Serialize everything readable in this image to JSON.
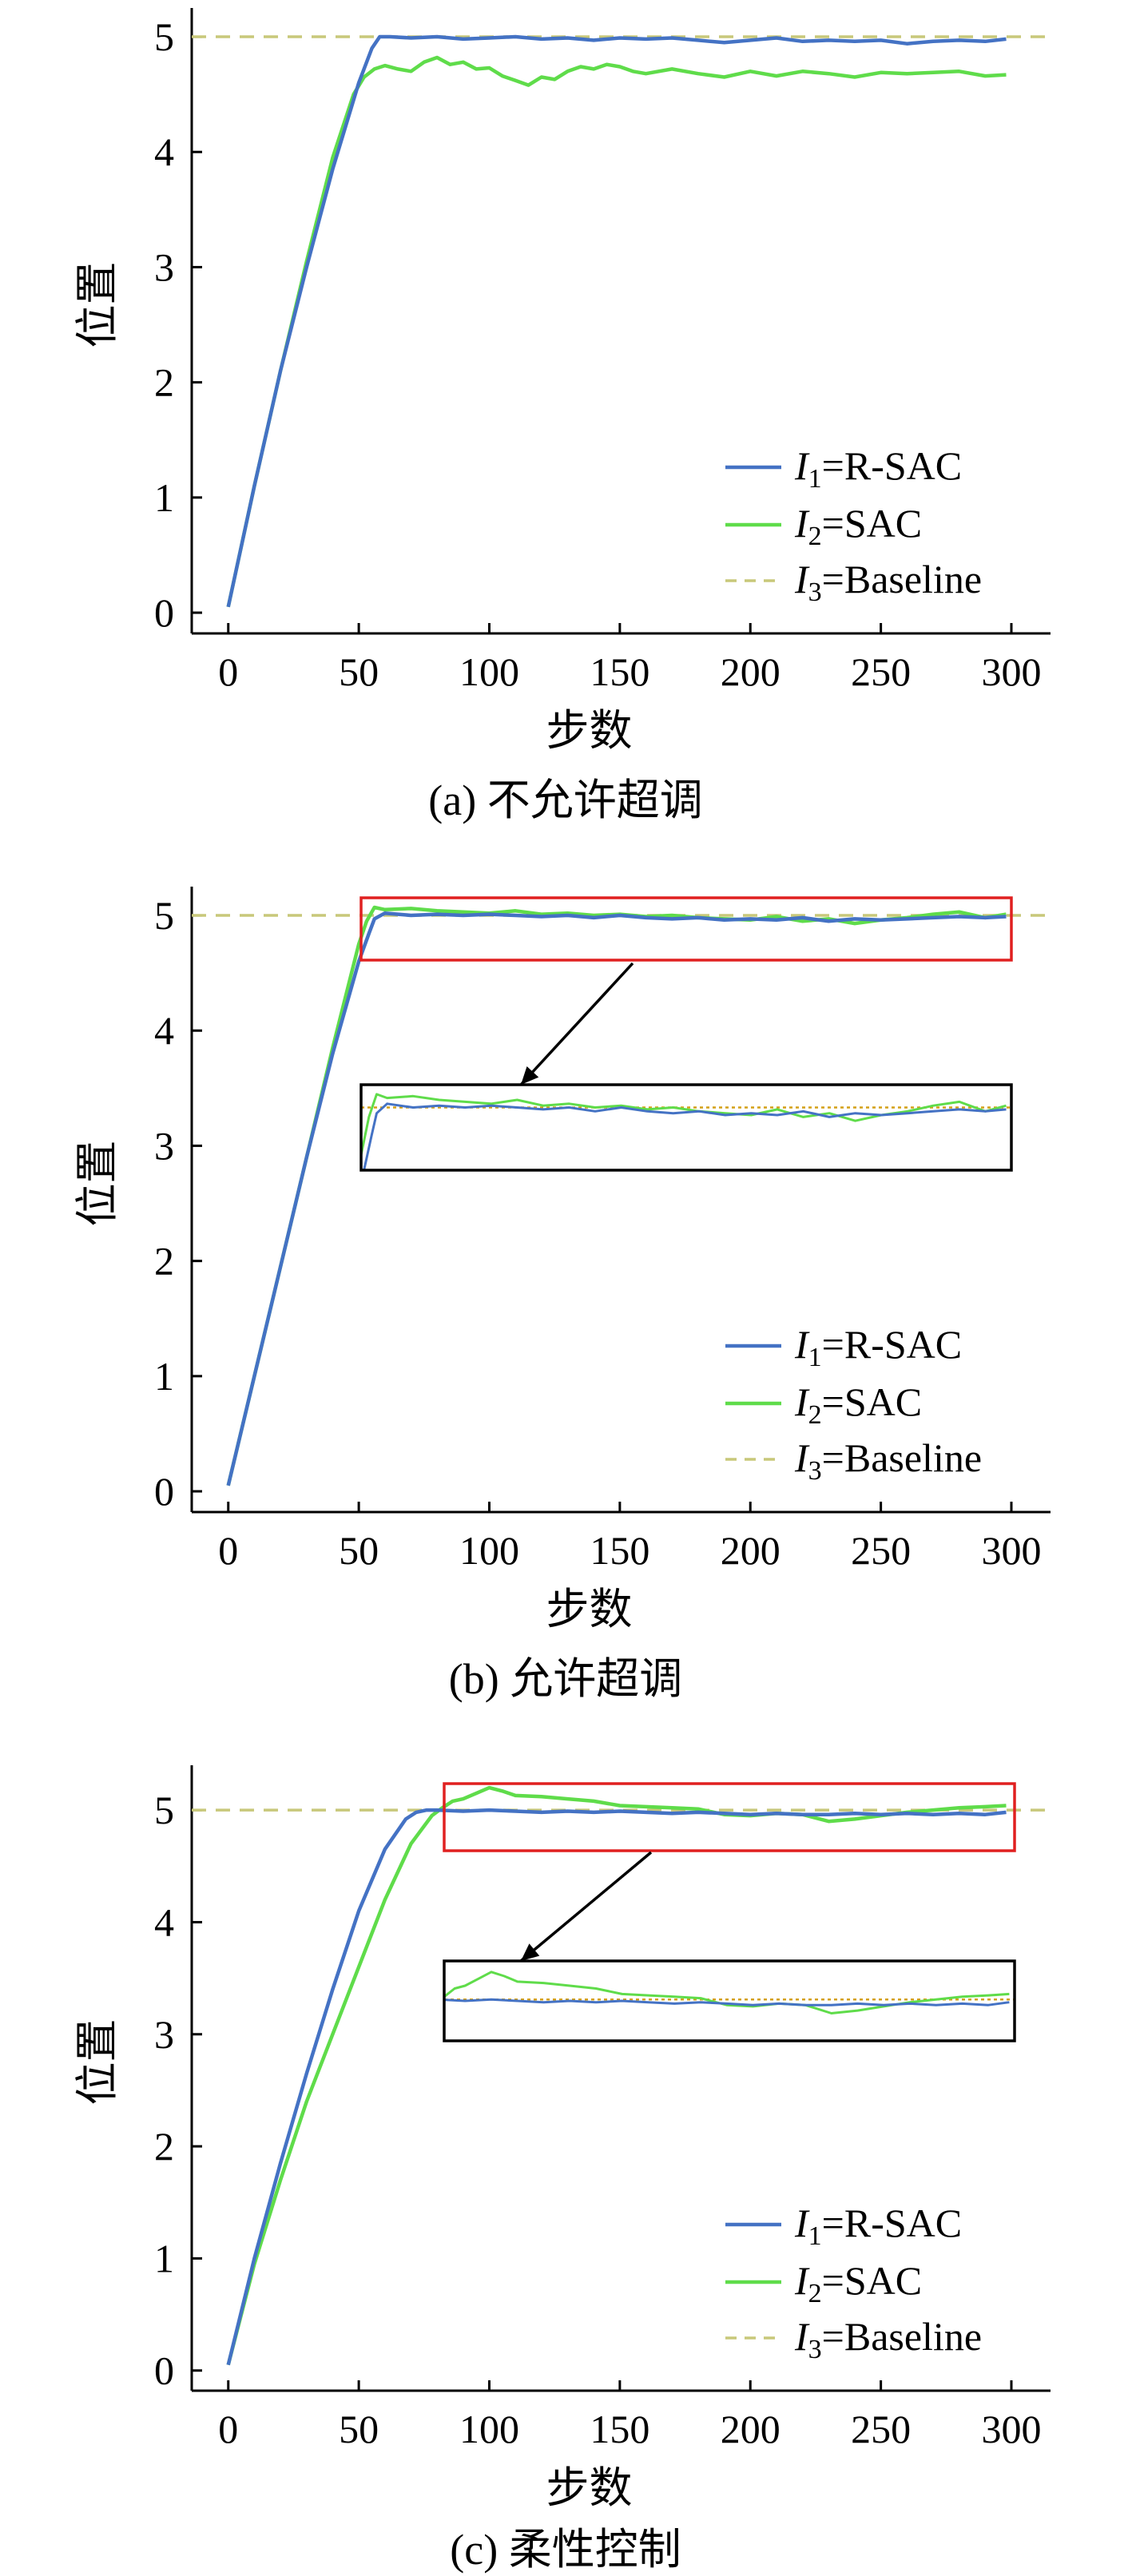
{
  "chart_data": [
    {
      "type": "line",
      "caption": "(a) 不允许超调",
      "xlabel": "步数",
      "ylabel": "位置",
      "xlim": [
        -14,
        315
      ],
      "ylim": [
        -0.18,
        5.25
      ],
      "xticks": [
        0,
        50,
        100,
        150,
        200,
        250,
        300
      ],
      "yticks": [
        0,
        1,
        2,
        3,
        4,
        5
      ],
      "legend_position": "bottom-right",
      "series": [
        {
          "name_prefix": "I",
          "name_sub": "1",
          "name_suffix": "=R-SAC",
          "color": "#4472c4",
          "style": "solid",
          "x": [
            0,
            10,
            20,
            30,
            40,
            50,
            55,
            58,
            62,
            70,
            80,
            90,
            100,
            110,
            120,
            130,
            140,
            150,
            160,
            170,
            180,
            190,
            200,
            210,
            220,
            230,
            240,
            250,
            260,
            270,
            280,
            290,
            298
          ],
          "y": [
            0.05,
            1.1,
            2.1,
            3.0,
            3.85,
            4.6,
            4.9,
            5.0,
            5.0,
            4.99,
            5.0,
            4.98,
            4.99,
            5.0,
            4.98,
            4.99,
            4.97,
            4.99,
            4.98,
            4.99,
            4.97,
            4.95,
            4.97,
            4.99,
            4.96,
            4.97,
            4.96,
            4.97,
            4.94,
            4.96,
            4.97,
            4.96,
            4.98
          ]
        },
        {
          "name_prefix": "I",
          "name_sub": "2",
          "name_suffix": "=SAC",
          "color": "#5fdc4a",
          "style": "solid",
          "x": [
            0,
            10,
            20,
            30,
            40,
            48,
            52,
            56,
            60,
            65,
            70,
            75,
            80,
            85,
            90,
            95,
            100,
            105,
            110,
            115,
            120,
            125,
            130,
            135,
            140,
            145,
            150,
            155,
            160,
            170,
            180,
            190,
            200,
            210,
            220,
            230,
            240,
            250,
            260,
            270,
            280,
            290,
            298
          ],
          "y": [
            0.05,
            1.1,
            2.1,
            3.05,
            3.95,
            4.5,
            4.65,
            4.72,
            4.75,
            4.72,
            4.7,
            4.78,
            4.82,
            4.76,
            4.78,
            4.72,
            4.73,
            4.66,
            4.62,
            4.58,
            4.65,
            4.63,
            4.7,
            4.74,
            4.72,
            4.76,
            4.74,
            4.7,
            4.68,
            4.72,
            4.68,
            4.65,
            4.7,
            4.66,
            4.7,
            4.68,
            4.65,
            4.69,
            4.68,
            4.69,
            4.7,
            4.66,
            4.67
          ]
        },
        {
          "name_prefix": "I",
          "name_sub": "3",
          "name_suffix": "=Baseline",
          "color": "#c8c87a",
          "style": "dashed",
          "x": [
            -14,
            315
          ],
          "y": [
            5.0,
            5.0
          ]
        }
      ]
    },
    {
      "type": "line",
      "caption": "(b) 允许超调",
      "xlabel": "步数",
      "ylabel": "位置",
      "xlim": [
        -14,
        315
      ],
      "ylim": [
        -0.18,
        5.25
      ],
      "xticks": [
        0,
        50,
        100,
        150,
        200,
        250,
        300
      ],
      "yticks": [
        0,
        1,
        2,
        3,
        4,
        5
      ],
      "legend_position": "bottom-right",
      "series": [
        {
          "name_prefix": "I",
          "name_sub": "1",
          "name_suffix": "=R-SAC",
          "color": "#4472c4",
          "style": "solid",
          "x": [
            0,
            10,
            20,
            30,
            40,
            50,
            54,
            56,
            60,
            70,
            80,
            90,
            100,
            110,
            120,
            130,
            140,
            150,
            160,
            170,
            180,
            190,
            200,
            210,
            220,
            230,
            240,
            250,
            260,
            270,
            280,
            290,
            298
          ],
          "y": [
            0.05,
            1.0,
            1.95,
            2.9,
            3.8,
            4.6,
            4.85,
            4.97,
            5.02,
            5.0,
            5.01,
            5.0,
            5.01,
            5.0,
            4.99,
            5.0,
            4.98,
            5.0,
            4.98,
            4.97,
            4.98,
            4.96,
            4.97,
            4.96,
            4.98,
            4.95,
            4.97,
            4.96,
            4.97,
            4.98,
            4.99,
            4.98,
            4.99
          ]
        },
        {
          "name_prefix": "I",
          "name_sub": "2",
          "name_suffix": "=SAC",
          "color": "#5fdc4a",
          "style": "solid",
          "x": [
            0,
            10,
            20,
            30,
            40,
            50,
            53,
            56,
            60,
            70,
            80,
            90,
            100,
            110,
            120,
            130,
            140,
            150,
            160,
            170,
            180,
            190,
            200,
            210,
            220,
            230,
            240,
            250,
            260,
            270,
            280,
            290,
            298
          ],
          "y": [
            0.05,
            1.0,
            1.95,
            2.9,
            3.85,
            4.75,
            4.95,
            5.07,
            5.05,
            5.06,
            5.04,
            5.03,
            5.02,
            5.04,
            5.01,
            5.02,
            5.0,
            5.01,
            4.99,
            5.0,
            4.98,
            4.97,
            4.96,
            4.99,
            4.95,
            4.97,
            4.93,
            4.96,
            4.98,
            5.01,
            5.03,
            4.98,
            5.01
          ]
        },
        {
          "name_prefix": "I",
          "name_sub": "3",
          "name_suffix": "=Baseline",
          "color": "#c8c87a",
          "style": "dashed",
          "x": [
            -14,
            315
          ],
          "y": [
            5.0,
            5.0
          ]
        }
      ],
      "zoom": {
        "xlim": [
          50,
          300
        ],
        "ylim": [
          4.67,
          5.12
        ]
      }
    },
    {
      "type": "line",
      "caption": "(c) 柔性控制",
      "xlabel": "步数",
      "ylabel": "位置",
      "xlim": [
        -14,
        315
      ],
      "ylim": [
        -0.18,
        5.4
      ],
      "xticks": [
        0,
        50,
        100,
        150,
        200,
        250,
        300
      ],
      "yticks": [
        0,
        1,
        2,
        3,
        4,
        5
      ],
      "legend_position": "bottom-right",
      "series": [
        {
          "name_prefix": "I",
          "name_sub": "1",
          "name_suffix": "=R-SAC",
          "color": "#4472c4",
          "style": "solid",
          "x": [
            0,
            10,
            20,
            30,
            40,
            50,
            60,
            68,
            72,
            76,
            80,
            90,
            100,
            110,
            120,
            130,
            140,
            150,
            160,
            170,
            180,
            190,
            200,
            210,
            220,
            230,
            240,
            250,
            260,
            270,
            280,
            290,
            298
          ],
          "y": [
            0.05,
            1.0,
            1.85,
            2.65,
            3.4,
            4.1,
            4.65,
            4.92,
            4.98,
            5.0,
            5.0,
            4.99,
            5.0,
            4.99,
            4.98,
            4.99,
            4.98,
            4.99,
            4.98,
            4.97,
            4.98,
            4.97,
            4.96,
            4.97,
            4.96,
            4.96,
            4.97,
            4.96,
            4.97,
            4.96,
            4.97,
            4.96,
            4.98
          ]
        },
        {
          "name_prefix": "I",
          "name_sub": "2",
          "name_suffix": "=SAC",
          "color": "#5fdc4a",
          "style": "solid",
          "x": [
            0,
            10,
            20,
            30,
            40,
            50,
            60,
            70,
            78,
            82,
            86,
            90,
            95,
            100,
            105,
            110,
            120,
            130,
            140,
            150,
            160,
            170,
            180,
            190,
            200,
            210,
            220,
            230,
            240,
            250,
            260,
            270,
            280,
            290,
            298
          ],
          "y": [
            0.05,
            0.95,
            1.7,
            2.4,
            3.0,
            3.6,
            4.2,
            4.7,
            4.95,
            5.02,
            5.08,
            5.1,
            5.15,
            5.2,
            5.17,
            5.13,
            5.12,
            5.1,
            5.08,
            5.04,
            5.03,
            5.02,
            5.01,
            4.96,
            4.95,
            4.97,
            4.96,
            4.9,
            4.92,
            4.95,
            4.98,
            5.0,
            5.02,
            5.03,
            5.04
          ]
        },
        {
          "name_prefix": "I",
          "name_sub": "3",
          "name_suffix": "=Baseline",
          "color": "#c8c87a",
          "style": "dashed",
          "x": [
            -14,
            315
          ],
          "y": [
            5.0,
            5.0
          ]
        }
      ],
      "zoom": {
        "xlim": [
          82,
          300
        ],
        "ylim": [
          4.7,
          5.28
        ]
      }
    }
  ]
}
